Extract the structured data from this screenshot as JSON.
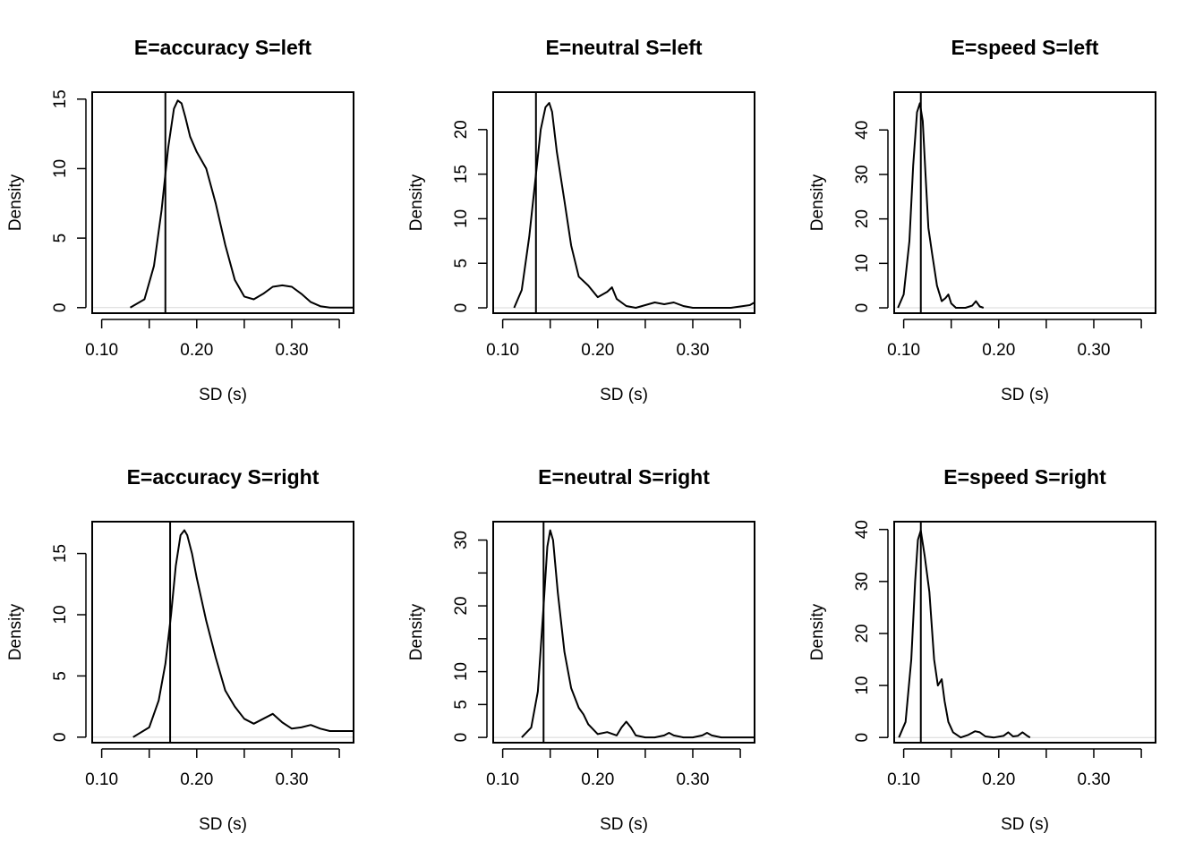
{
  "chart_data": [
    {
      "type": "line",
      "title": "E=accuracy S=left",
      "xlabel": "SD (s)",
      "ylabel": "Density",
      "xlim": [
        0.09,
        0.365
      ],
      "ylim": [
        -0.4,
        15.5
      ],
      "xticks": [
        0.1,
        0.15,
        0.2,
        0.25,
        0.3,
        0.35
      ],
      "xtick_labels": [
        "0.10",
        "",
        "0.20",
        "",
        "0.30",
        ""
      ],
      "yticks": [
        0,
        5,
        10,
        15
      ],
      "ytick_labels": [
        "0",
        "5",
        "10",
        "15"
      ],
      "vline": 0.167,
      "series": [
        {
          "x": [
            0.13,
            0.145,
            0.155,
            0.163,
            0.17,
            0.176,
            0.18,
            0.184,
            0.188,
            0.193,
            0.2,
            0.21,
            0.22,
            0.23,
            0.24,
            0.25,
            0.26,
            0.27,
            0.28,
            0.29,
            0.3,
            0.31,
            0.32,
            0.33,
            0.34,
            0.365
          ],
          "y": [
            0,
            0.6,
            3.0,
            7.0,
            11.5,
            14.3,
            14.9,
            14.7,
            13.7,
            12.3,
            11.2,
            10.0,
            7.5,
            4.5,
            2.0,
            0.8,
            0.6,
            1.0,
            1.5,
            1.6,
            1.5,
            1.0,
            0.4,
            0.1,
            0.0,
            0.0
          ]
        }
      ]
    },
    {
      "type": "line",
      "title": "E=neutral S=left",
      "xlabel": "SD (s)",
      "ylabel": "Density",
      "xlim": [
        0.09,
        0.365
      ],
      "ylim": [
        -0.6,
        24.2
      ],
      "xticks": [
        0.1,
        0.15,
        0.2,
        0.25,
        0.3,
        0.35
      ],
      "xtick_labels": [
        "0.10",
        "",
        "0.20",
        "",
        "0.30",
        ""
      ],
      "yticks": [
        0,
        5,
        10,
        15,
        20
      ],
      "ytick_labels": [
        "0",
        "5",
        "10",
        "15",
        "20"
      ],
      "vline": 0.135,
      "series": [
        {
          "x": [
            0.112,
            0.12,
            0.128,
            0.135,
            0.14,
            0.145,
            0.149,
            0.152,
            0.157,
            0.165,
            0.172,
            0.18,
            0.19,
            0.2,
            0.21,
            0.215,
            0.22,
            0.23,
            0.24,
            0.25,
            0.26,
            0.27,
            0.28,
            0.29,
            0.3,
            0.34,
            0.36,
            0.365
          ],
          "y": [
            0,
            2.0,
            8.0,
            15.0,
            20.0,
            22.5,
            23.0,
            22.0,
            17.5,
            12.0,
            7.0,
            3.5,
            2.5,
            1.2,
            1.8,
            2.3,
            1.0,
            0.2,
            0.0,
            0.3,
            0.6,
            0.4,
            0.6,
            0.2,
            0.0,
            0.0,
            0.3,
            0.6
          ]
        }
      ]
    },
    {
      "type": "line",
      "title": "E=speed S=left",
      "xlabel": "SD (s)",
      "ylabel": "Density",
      "xlim": [
        0.09,
        0.365
      ],
      "ylim": [
        -1.2,
        48.5
      ],
      "xticks": [
        0.1,
        0.15,
        0.2,
        0.25,
        0.3,
        0.35
      ],
      "xtick_labels": [
        "0.10",
        "",
        "0.20",
        "",
        "0.30",
        ""
      ],
      "yticks": [
        0,
        10,
        20,
        30,
        40
      ],
      "ytick_labels": [
        "0",
        "10",
        "20",
        "30",
        "40"
      ],
      "vline": 0.118,
      "series": [
        {
          "x": [
            0.094,
            0.1,
            0.106,
            0.11,
            0.114,
            0.117,
            0.12,
            0.123,
            0.126,
            0.13,
            0.135,
            0.14,
            0.144,
            0.147,
            0.15,
            0.155,
            0.165,
            0.172,
            0.176,
            0.18,
            0.184
          ],
          "y": [
            0,
            3.0,
            15.0,
            32.0,
            44.0,
            46.0,
            42.0,
            30.0,
            18.0,
            12.0,
            5.0,
            1.5,
            2.2,
            3.0,
            1.0,
            0.0,
            0.0,
            0.5,
            1.5,
            0.3,
            0.0
          ]
        }
      ]
    },
    {
      "type": "line",
      "title": "E=accuracy S=right",
      "xlabel": "SD (s)",
      "ylabel": "Density",
      "xlim": [
        0.09,
        0.365
      ],
      "ylim": [
        -0.45,
        17.6
      ],
      "xticks": [
        0.1,
        0.15,
        0.2,
        0.25,
        0.3,
        0.35
      ],
      "xtick_labels": [
        "0.10",
        "",
        "0.20",
        "",
        "0.30",
        ""
      ],
      "yticks": [
        0,
        5,
        10,
        15
      ],
      "ytick_labels": [
        "0",
        "5",
        "10",
        "15"
      ],
      "vline": 0.172,
      "series": [
        {
          "x": [
            0.133,
            0.15,
            0.16,
            0.167,
            0.173,
            0.178,
            0.183,
            0.187,
            0.19,
            0.195,
            0.2,
            0.21,
            0.22,
            0.23,
            0.24,
            0.25,
            0.26,
            0.27,
            0.28,
            0.29,
            0.3,
            0.31,
            0.32,
            0.33,
            0.34,
            0.365
          ],
          "y": [
            0,
            0.8,
            3.0,
            6.0,
            10.0,
            14.0,
            16.5,
            16.9,
            16.5,
            15.0,
            13.0,
            9.5,
            6.5,
            3.8,
            2.5,
            1.5,
            1.1,
            1.5,
            1.9,
            1.2,
            0.7,
            0.8,
            1.0,
            0.7,
            0.5,
            0.5
          ]
        }
      ]
    },
    {
      "type": "line",
      "title": "E=neutral S=right",
      "xlabel": "SD (s)",
      "ylabel": "Density",
      "xlim": [
        0.09,
        0.365
      ],
      "ylim": [
        -0.8,
        32.8
      ],
      "xticks": [
        0.1,
        0.15,
        0.2,
        0.25,
        0.3,
        0.35
      ],
      "xtick_labels": [
        "0.10",
        "",
        "0.20",
        "",
        "0.30",
        ""
      ],
      "yticks": [
        0,
        5,
        10,
        15,
        20,
        25,
        30
      ],
      "ytick_labels": [
        "0",
        "5",
        "10",
        "",
        "20",
        "",
        "30"
      ],
      "vline": 0.143,
      "series": [
        {
          "x": [
            0.12,
            0.13,
            0.137,
            0.143,
            0.147,
            0.15,
            0.153,
            0.158,
            0.165,
            0.172,
            0.18,
            0.185,
            0.19,
            0.2,
            0.21,
            0.22,
            0.225,
            0.23,
            0.235,
            0.24,
            0.25,
            0.26,
            0.27,
            0.275,
            0.28,
            0.29,
            0.3,
            0.31,
            0.315,
            0.32,
            0.33,
            0.365
          ],
          "y": [
            0,
            1.5,
            7.0,
            20.0,
            29.0,
            31.5,
            30.0,
            22.0,
            13.0,
            7.5,
            4.5,
            3.5,
            2.0,
            0.5,
            0.8,
            0.3,
            1.5,
            2.4,
            1.5,
            0.3,
            0.0,
            0.0,
            0.3,
            0.7,
            0.3,
            0.0,
            0.0,
            0.3,
            0.7,
            0.3,
            0.0,
            0.0
          ]
        }
      ]
    },
    {
      "type": "line",
      "title": "E=speed S=right",
      "xlabel": "SD (s)",
      "ylabel": "Density",
      "xlim": [
        0.09,
        0.365
      ],
      "ylim": [
        -1.0,
        41.5
      ],
      "xticks": [
        0.1,
        0.15,
        0.2,
        0.25,
        0.3,
        0.35
      ],
      "xtick_labels": [
        "0.10",
        "",
        "0.20",
        "",
        "0.30",
        ""
      ],
      "yticks": [
        0,
        10,
        20,
        30,
        40
      ],
      "ytick_labels": [
        "0",
        "10",
        "20",
        "30",
        "40"
      ],
      "vline": 0.118,
      "series": [
        {
          "x": [
            0.095,
            0.102,
            0.108,
            0.112,
            0.115,
            0.118,
            0.122,
            0.127,
            0.132,
            0.136,
            0.14,
            0.143,
            0.147,
            0.152,
            0.16,
            0.168,
            0.175,
            0.18,
            0.186,
            0.195,
            0.205,
            0.21,
            0.215,
            0.22,
            0.225,
            0.23,
            0.233
          ],
          "y": [
            0,
            3.0,
            15.0,
            30.0,
            38.0,
            39.8,
            35.0,
            28.0,
            15.0,
            10.0,
            11.2,
            7.0,
            3.0,
            1.0,
            0.0,
            0.5,
            1.2,
            1.0,
            0.2,
            0.0,
            0.3,
            1.0,
            0.2,
            0.3,
            1.0,
            0.3,
            0.0
          ]
        }
      ]
    }
  ]
}
